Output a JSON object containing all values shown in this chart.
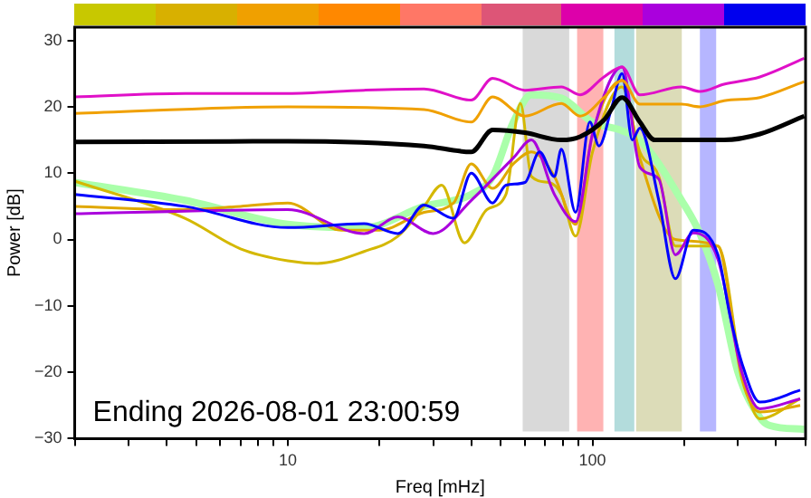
{
  "chart_data": {
    "type": "line",
    "xlabel": "Freq [mHz]",
    "ylabel": "Power [dB]",
    "log": "x",
    "grid": false,
    "legend": false,
    "marker": "none",
    "line_style": "solid",
    "xlim": [
      2,
      500
    ],
    "ylim": [
      -30,
      32
    ],
    "xticks": [
      {
        "value": 2,
        "label": null
      },
      {
        "value": 3,
        "label": null
      },
      {
        "value": 4,
        "label": null
      },
      {
        "value": 5,
        "label": null
      },
      {
        "value": 6,
        "label": null
      },
      {
        "value": 7,
        "label": null
      },
      {
        "value": 8,
        "label": null
      },
      {
        "value": 9,
        "label": null
      },
      10,
      {
        "value": 20,
        "label": null
      },
      {
        "value": 30,
        "label": null
      },
      {
        "value": 40,
        "label": null
      },
      {
        "value": 50,
        "label": null
      },
      {
        "value": 60,
        "label": null
      },
      {
        "value": 70,
        "label": null
      },
      {
        "value": 80,
        "label": null
      },
      {
        "value": 90,
        "label": null
      },
      100,
      {
        "value": 200,
        "label": null
      },
      {
        "value": 300,
        "label": null
      },
      {
        "value": 400,
        "label": null
      },
      {
        "value": 500,
        "label": null
      }
    ],
    "yticks": [
      {
        "value": -30,
        "label": "−30"
      },
      {
        "value": -20,
        "label": "−20"
      },
      {
        "value": -10,
        "label": "−10"
      },
      0,
      10,
      20,
      30
    ],
    "bands": [
      {
        "axis": "x",
        "from": 59,
        "to": 85,
        "color": "#d9d9d9"
      },
      {
        "axis": "x",
        "from": 89,
        "to": 110,
        "color": "#ffb3b3"
      },
      {
        "axis": "x",
        "from": 118,
        "to": 139,
        "color": "#b3dcdc"
      },
      {
        "axis": "x",
        "from": 139,
        "to": 199,
        "color": "#dcdcb8"
      },
      {
        "axis": "x",
        "from": 225,
        "to": 258,
        "color": "#b6b6ff"
      }
    ],
    "series": [
      {
        "color": "#aaffaa",
        "x": [
          2,
          4.6,
          10,
          17.8,
          28,
          40,
          47,
          55,
          63,
          79,
          100,
          125,
          143,
          196,
          225,
          258,
          300,
          354,
          380,
          495
        ],
        "values": [
          8.6,
          5.9,
          2.3,
          1.8,
          5,
          6.8,
          9.5,
          17.7,
          21.8,
          21.3,
          17.7,
          16.4,
          15,
          5.9,
          0.9,
          -6.8,
          -20,
          -26.8,
          -28,
          -28.6
        ]
      },
      {
        "color": "#d4b800",
        "x": [
          2,
          4.6,
          7,
          10,
          12.5,
          17.8,
          23,
          28,
          32,
          38,
          45,
          52,
          58,
          63,
          72,
          79,
          88,
          100,
          125,
          143,
          165,
          187,
          258,
          309,
          354,
          480
        ],
        "values": [
          8.8,
          3.2,
          -1.4,
          -3.2,
          -3.6,
          -1.8,
          0.5,
          5,
          8.2,
          -0.5,
          4.5,
          6.8,
          20.5,
          9.5,
          8.6,
          6.8,
          0.5,
          13.2,
          23,
          13.2,
          9.5,
          -1,
          -1,
          -20,
          -27,
          -24
        ]
      },
      {
        "color": "#e0a800",
        "x": [
          2,
          4.6,
          7,
          10,
          15,
          20,
          28,
          35,
          40,
          47,
          55,
          63,
          75,
          88,
          100,
          125,
          143,
          187,
          258,
          309,
          354,
          480
        ],
        "values": [
          5,
          4.5,
          5,
          5.5,
          1.4,
          1.4,
          4.1,
          5.5,
          11.4,
          7.7,
          11.4,
          13.2,
          9.5,
          2.3,
          15.9,
          24,
          12.3,
          0,
          -1,
          -21,
          -26,
          -25
        ]
      },
      {
        "color": "#aa00dd",
        "x": [
          2,
          10,
          17.8,
          23,
          30,
          40,
          55,
          63,
          75,
          88,
          100,
          125,
          143,
          165,
          187,
          214,
          258,
          309,
          354,
          480
        ],
        "values": [
          3.9,
          4.5,
          0.9,
          3.4,
          0.9,
          5.9,
          12.3,
          15,
          6.8,
          2.7,
          15.9,
          26,
          10.9,
          9.1,
          -2.3,
          1,
          -3,
          -20,
          -25.5,
          -24
        ]
      },
      {
        "color": "#0000ff",
        "x": [
          2,
          4.6,
          10,
          17.8,
          23,
          28,
          35,
          40,
          47,
          52,
          60,
          67,
          75,
          79,
          88,
          98,
          105,
          115,
          125,
          135,
          143,
          165,
          187,
          214,
          258,
          282,
          309,
          354,
          480
        ],
        "values": [
          6.8,
          5,
          1.8,
          2.4,
          0.9,
          5.2,
          3.2,
          10,
          5.5,
          8.2,
          8.6,
          13.2,
          9.5,
          13.6,
          4.1,
          17.7,
          14.1,
          19.5,
          25,
          15,
          16.8,
          5.9,
          -5.9,
          1.4,
          -2.3,
          -11.3,
          -18.6,
          -24.5,
          -22.7
        ]
      },
      {
        "color": "#f0a000",
        "x": [
          2,
          10,
          28,
          40,
          47,
          60,
          79,
          91,
          109,
          125,
          143,
          196,
          225,
          270,
          354,
          495
        ],
        "values": [
          19,
          20,
          19.6,
          17.7,
          21.5,
          18.6,
          20.5,
          18.6,
          21.4,
          24,
          20.4,
          20.4,
          20,
          20.9,
          21.4,
          23.8
        ]
      },
      {
        "color": "#e010c8",
        "x": [
          2,
          4.6,
          10,
          17.8,
          28,
          40,
          47,
          60,
          79,
          91,
          109,
          125,
          143,
          196,
          225,
          270,
          354,
          495
        ],
        "values": [
          21.5,
          22,
          22,
          22.5,
          22.7,
          21,
          24.3,
          22.5,
          23,
          21.8,
          24.5,
          26,
          21.8,
          23,
          22.3,
          23.4,
          24.5,
          27.3
        ]
      },
      {
        "color": "#000000",
        "x": [
          2,
          10,
          28,
          40,
          47,
          60,
          79,
          91,
          109,
          125,
          143,
          160,
          196,
          270,
          354,
          495
        ],
        "values": [
          14.7,
          14.8,
          14.1,
          13.2,
          16.5,
          16.1,
          15,
          15.5,
          18,
          21.4,
          17.7,
          15,
          15,
          15,
          15.9,
          18.6
        ]
      }
    ],
    "annotations": [
      "Ending 2026-08-01 23:00:59"
    ]
  }
}
